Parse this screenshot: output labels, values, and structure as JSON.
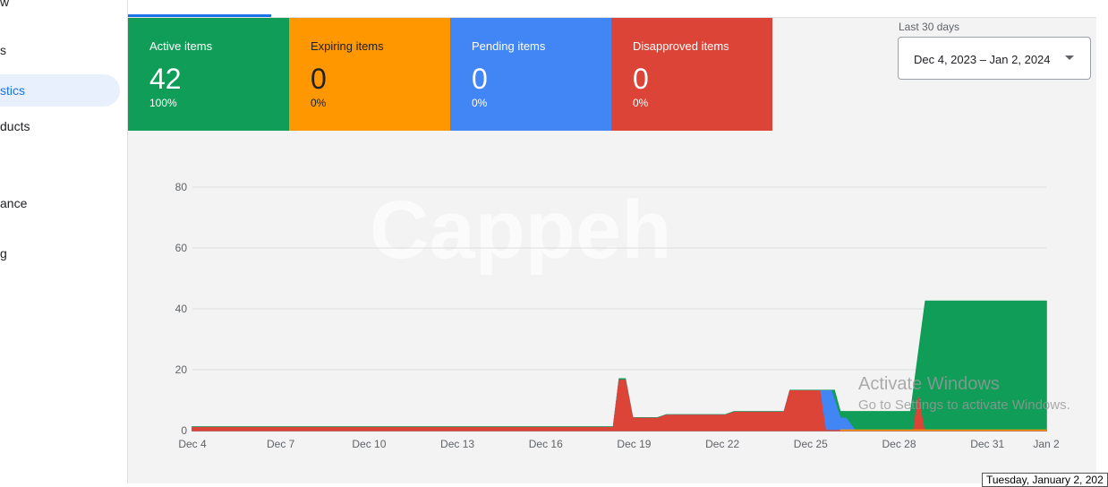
{
  "sidebar": {
    "items": [
      {
        "label": "w"
      },
      {
        "label": "s"
      },
      {
        "label": "stics"
      },
      {
        "label": "ducts"
      },
      {
        "label": "ance"
      },
      {
        "label": "g"
      }
    ]
  },
  "cards": [
    {
      "label": "Active items",
      "value": "42",
      "percent": "100%",
      "color": "#0f9d58"
    },
    {
      "label": "Expiring items",
      "value": "0",
      "percent": "0%",
      "color": "#ff9800"
    },
    {
      "label": "Pending items",
      "value": "0",
      "percent": "0%",
      "color": "#4285f4"
    },
    {
      "label": "Disapproved items",
      "value": "0",
      "percent": "0%",
      "color": "#db4437"
    }
  ],
  "date_range": {
    "label": "Last 30 days",
    "value": "Dec 4, 2023 – Jan 2, 2024"
  },
  "watermark": "Cappeh",
  "overlay": {
    "line1": "Activate Windows",
    "line2": "Go to Settings to activate Windows."
  },
  "tooltip": "Tuesday, January 2, 202",
  "chart_data": {
    "type": "area",
    "yticks": [
      0,
      20,
      40,
      60,
      80
    ],
    "ylim": [
      0,
      80
    ],
    "xticks": [
      {
        "day": 0,
        "label": "Dec 4"
      },
      {
        "day": 3,
        "label": "Dec 7"
      },
      {
        "day": 6,
        "label": "Dec 10"
      },
      {
        "day": 9,
        "label": "Dec 13"
      },
      {
        "day": 12,
        "label": "Dec 16"
      },
      {
        "day": 15,
        "label": "Dec 19"
      },
      {
        "day": 18,
        "label": "Dec 22"
      },
      {
        "day": 21,
        "label": "Dec 25"
      },
      {
        "day": 24,
        "label": "Dec 28"
      },
      {
        "day": 27,
        "label": "Dec 31"
      },
      {
        "day": 29,
        "label": "Jan 2"
      }
    ],
    "series": [
      {
        "name": "Active",
        "color": "#0f9d58",
        "points": [
          [
            0,
            1.2
          ],
          [
            14.3,
            1.2
          ],
          [
            14.5,
            17
          ],
          [
            14.7,
            17
          ],
          [
            14.95,
            4.2
          ],
          [
            15.8,
            4.2
          ],
          [
            16.1,
            5.2
          ],
          [
            18.1,
            5.2
          ],
          [
            18.4,
            6.2
          ],
          [
            20.1,
            6.2
          ],
          [
            20.3,
            13.2
          ],
          [
            21.8,
            13.2
          ],
          [
            22.0,
            6.2
          ],
          [
            24.4,
            6.2
          ],
          [
            24.9,
            42.5
          ],
          [
            29,
            42.5
          ]
        ]
      },
      {
        "name": "Pending",
        "color": "#4285f4",
        "points": [
          [
            0,
            1
          ],
          [
            14.3,
            1
          ],
          [
            14.5,
            16.5
          ],
          [
            14.7,
            16.5
          ],
          [
            14.95,
            4
          ],
          [
            15.8,
            4
          ],
          [
            16.1,
            5
          ],
          [
            18.1,
            5
          ],
          [
            18.4,
            6
          ],
          [
            20.1,
            6
          ],
          [
            20.3,
            13
          ],
          [
            21.7,
            13
          ],
          [
            22.0,
            4
          ],
          [
            22.2,
            4
          ],
          [
            22.5,
            0
          ],
          [
            29,
            0
          ]
        ]
      },
      {
        "name": "Disapproved",
        "color": "#db4437",
        "points": [
          [
            0,
            1
          ],
          [
            14.3,
            1
          ],
          [
            14.5,
            16.5
          ],
          [
            14.7,
            16.5
          ],
          [
            14.95,
            4
          ],
          [
            15.8,
            4
          ],
          [
            16.1,
            5
          ],
          [
            18.1,
            5
          ],
          [
            18.4,
            6
          ],
          [
            20.1,
            6
          ],
          [
            20.3,
            13
          ],
          [
            21.3,
            13
          ],
          [
            21.5,
            0
          ],
          [
            24.5,
            0
          ],
          [
            24.65,
            11
          ],
          [
            24.85,
            0
          ],
          [
            29,
            0
          ]
        ]
      }
    ]
  }
}
